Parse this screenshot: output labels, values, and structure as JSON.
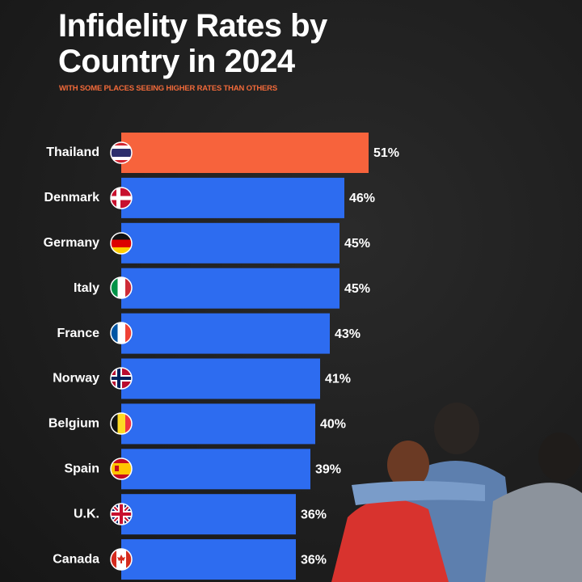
{
  "chart_data": {
    "type": "bar",
    "orientation": "horizontal",
    "title": "Infidelity Rates by Country in 2024",
    "subtitle": "WITH SOME PLACES SEEING HIGHER RATES THAN OTHERS",
    "categories": [
      "Thailand",
      "Denmark",
      "Germany",
      "Italy",
      "France",
      "Norway",
      "Belgium",
      "Spain",
      "U.K.",
      "Canada"
    ],
    "values": [
      51,
      46,
      45,
      45,
      43,
      41,
      40,
      39,
      36,
      36
    ],
    "value_labels": [
      "51%",
      "46%",
      "45%",
      "45%",
      "43%",
      "41%",
      "40%",
      "39%",
      "36%",
      "36%"
    ],
    "colors": [
      "#f7633c",
      "#2d6cf0",
      "#2d6cf0",
      "#2d6cf0",
      "#2d6cf0",
      "#2d6cf0",
      "#2d6cf0",
      "#2d6cf0",
      "#2d6cf0",
      "#2d6cf0"
    ]
  }
}
